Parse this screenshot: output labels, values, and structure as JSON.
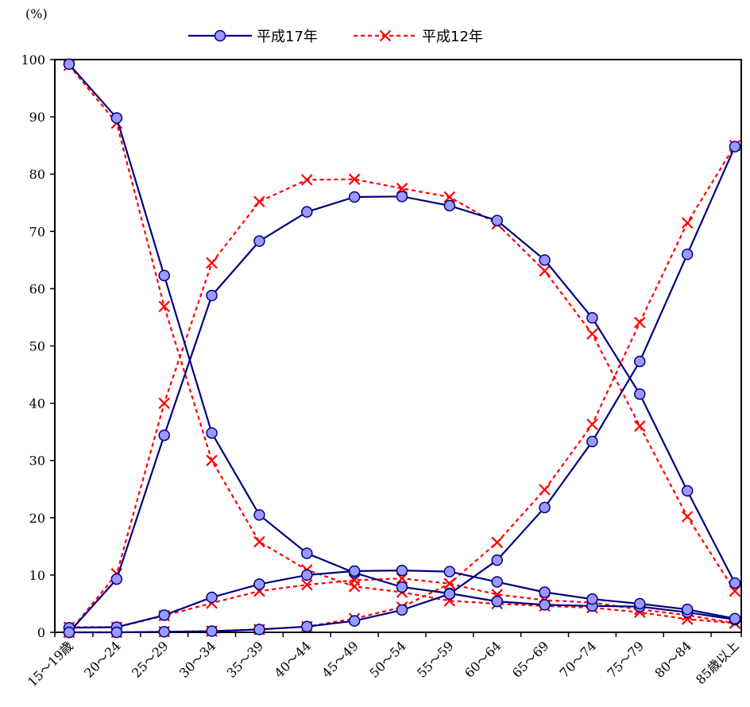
{
  "chart_data": {
    "type": "line",
    "title": "",
    "xlabel": "",
    "ylabel": "",
    "y_unit": "(%)",
    "ylim": [
      0,
      100
    ],
    "y_ticks": [
      0,
      10,
      20,
      30,
      40,
      50,
      60,
      70,
      80,
      90,
      100
    ],
    "grid": false,
    "legend_position": "top-center",
    "categories": [
      "15～19歳",
      "20～24",
      "25～29",
      "30～34",
      "35～39",
      "40～44",
      "45～49",
      "50～54",
      "55～59",
      "60～64",
      "65～69",
      "70～74",
      "75～79",
      "80～84",
      "85歳以上"
    ],
    "series": [
      {
        "name": "平成17年",
        "group": 0,
        "color": "#000080",
        "marker": "circle",
        "values": [
          99.2,
          89.8,
          62.3,
          34.8,
          20.5,
          13.8,
          10.4,
          7.9,
          6.8,
          5.4,
          4.8,
          4.6,
          4.5,
          3.5,
          2.2
        ]
      },
      {
        "group": 0,
        "color": "#000080",
        "marker": "circle",
        "values": [
          0.0,
          9.3,
          34.4,
          58.8,
          68.3,
          73.4,
          76.0,
          76.1,
          74.5,
          71.9,
          65.0,
          54.9,
          41.6,
          24.7,
          8.6
        ]
      },
      {
        "group": 0,
        "color": "#000080",
        "marker": "circle",
        "values": [
          0.8,
          0.9,
          3.0,
          6.1,
          8.4,
          10.0,
          10.7,
          10.8,
          10.6,
          8.8,
          7.0,
          5.8,
          5.0,
          4.0,
          2.4
        ]
      },
      {
        "group": 0,
        "color": "#000080",
        "marker": "circle",
        "values": [
          0.0,
          0.0,
          0.1,
          0.2,
          0.5,
          1.0,
          2.0,
          3.9,
          6.7,
          12.6,
          21.8,
          33.3,
          47.3,
          66.0,
          84.8
        ]
      },
      {
        "name": "平成12年",
        "group": 1,
        "color": "#ff0000",
        "marker": "x",
        "values": [
          99.0,
          88.9,
          56.9,
          30.0,
          15.8,
          10.9,
          8.0,
          7.0,
          5.5,
          5.0,
          4.6,
          4.3,
          3.5,
          2.3,
          1.6
        ]
      },
      {
        "group": 1,
        "color": "#ff0000",
        "marker": "x",
        "values": [
          0.0,
          10.2,
          40.0,
          64.5,
          75.2,
          79.0,
          79.1,
          77.5,
          76.0,
          71.3,
          63.1,
          52.1,
          36.0,
          20.2,
          7.2
        ]
      },
      {
        "group": 1,
        "color": "#ff0000",
        "marker": "x",
        "values": [
          0.9,
          0.9,
          2.9,
          5.1,
          7.2,
          8.3,
          9.1,
          9.4,
          8.5,
          6.6,
          5.6,
          5.2,
          4.0,
          3.0,
          1.6
        ]
      },
      {
        "group": 1,
        "color": "#ff0000",
        "marker": "x",
        "values": [
          0.0,
          0.0,
          0.1,
          0.2,
          0.5,
          1.0,
          2.4,
          4.4,
          8.5,
          15.7,
          24.9,
          36.3,
          54.1,
          71.5,
          85.0
        ]
      }
    ]
  }
}
